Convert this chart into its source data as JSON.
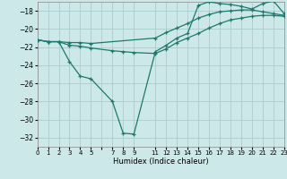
{
  "xlabel": "Humidex (Indice chaleur)",
  "background_color": "#cce8e8",
  "grid_color": "#aacccc",
  "line_color": "#1a7a6e",
  "line1_x": [
    0,
    1,
    2,
    3,
    4,
    5,
    7,
    8,
    9,
    11,
    12,
    13,
    14,
    15,
    16,
    17,
    18,
    19,
    20,
    21,
    22,
    23
  ],
  "line1_y": [
    -21.2,
    -21.4,
    -21.4,
    -23.6,
    -25.2,
    -25.5,
    -28.0,
    -31.5,
    -31.6,
    -22.5,
    -21.8,
    -21.0,
    -20.5,
    -17.4,
    -17.0,
    -17.2,
    -17.3,
    -17.5,
    -17.8,
    -17.2,
    -16.9,
    -18.3
  ],
  "line2_x": [
    0,
    1,
    2,
    3,
    4,
    5,
    7,
    8,
    9,
    11,
    12,
    13,
    14,
    15,
    16,
    17,
    18,
    19,
    20,
    21,
    22,
    23
  ],
  "line2_y": [
    -21.2,
    -21.4,
    -21.4,
    -21.8,
    -21.9,
    -22.1,
    -22.4,
    -22.5,
    -22.6,
    -22.7,
    -22.2,
    -21.5,
    -21.0,
    -20.5,
    -19.9,
    -19.4,
    -19.0,
    -18.8,
    -18.6,
    -18.5,
    -18.5,
    -18.6
  ],
  "line3_x": [
    0,
    1,
    2,
    3,
    4,
    5,
    11,
    12,
    13,
    14,
    15,
    16,
    17,
    18,
    19,
    20,
    21,
    22,
    23
  ],
  "line3_y": [
    -21.2,
    -21.4,
    -21.4,
    -21.5,
    -21.5,
    -21.6,
    -21.0,
    -20.4,
    -19.9,
    -19.4,
    -18.8,
    -18.4,
    -18.1,
    -18.0,
    -17.9,
    -17.9,
    -18.1,
    -18.3,
    -18.5
  ],
  "xlim": [
    0,
    23
  ],
  "ylim": [
    -33.0,
    -17.0
  ],
  "yticks": [
    -32,
    -30,
    -28,
    -26,
    -24,
    -22,
    -20,
    -18
  ],
  "xticks": [
    0,
    1,
    2,
    3,
    4,
    5,
    6,
    7,
    8,
    9,
    11,
    12,
    13,
    14,
    15,
    16,
    17,
    18,
    19,
    20,
    21,
    22,
    23
  ],
  "xtick_labels": [
    "0",
    "1",
    "2",
    "3",
    "4",
    "5",
    "",
    "7",
    "8",
    "9",
    "11",
    "12",
    "13",
    "14",
    "15",
    "16",
    "17",
    "18",
    "19",
    "20",
    "21",
    "22",
    "23"
  ]
}
